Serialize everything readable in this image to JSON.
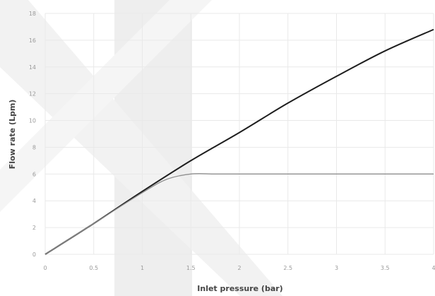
{
  "chart_data": {
    "type": "line",
    "title": "",
    "xlabel": "Inlet pressure (bar)",
    "ylabel": "Flow rate (Lpm)",
    "xlim": [
      0,
      4
    ],
    "ylim": [
      0,
      18
    ],
    "x_ticks": [
      0,
      0.5,
      1,
      1.5,
      2,
      2.5,
      3,
      3.5,
      4
    ],
    "x_tick_labels": [
      "0",
      "0.5",
      "1",
      "1.5",
      "2",
      "2.5",
      "3",
      "3.5",
      "4"
    ],
    "y_ticks": [
      0,
      2,
      4,
      6,
      8,
      10,
      12,
      14,
      16,
      18
    ],
    "y_tick_labels": [
      "0",
      "2",
      "4",
      "6",
      "8",
      "10",
      "12",
      "14",
      "16",
      "18"
    ],
    "grid": true,
    "legend": "none",
    "series": [
      {
        "color": "#1e1e1e",
        "x": [
          0,
          0.5,
          1,
          1.5,
          2,
          2.5,
          3,
          3.5,
          4
        ],
        "y": [
          0,
          2.3,
          4.7,
          7.0,
          9.1,
          11.3,
          13.3,
          15.2,
          16.8
        ]
      },
      {
        "color": "#8f8f8f",
        "x": [
          0,
          0.5,
          1,
          1.25,
          1.5,
          1.75,
          2,
          2.5,
          3,
          3.5,
          4
        ],
        "y": [
          0,
          2.3,
          4.6,
          5.6,
          6.0,
          6.0,
          6.0,
          6.0,
          6.0,
          6.0,
          6.0
        ]
      }
    ]
  }
}
